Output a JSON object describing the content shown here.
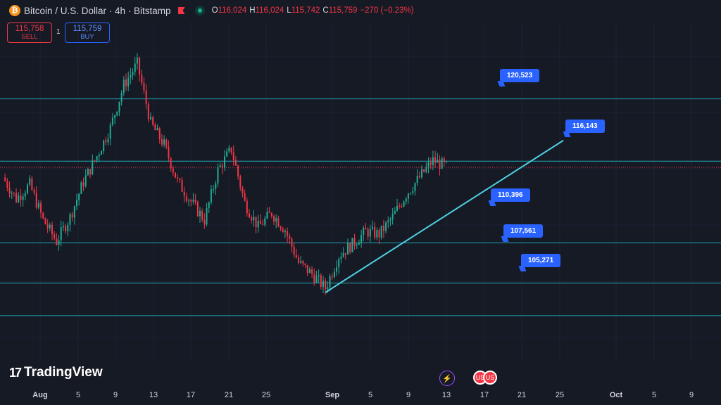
{
  "header": {
    "coin_symbol": "₿",
    "title": "Bitcoin / U.S. Dollar · 4h · Bitstamp",
    "ohlc": {
      "o_label": "O",
      "o": "116,024",
      "h_label": "H",
      "h": "116,024",
      "l_label": "L",
      "l": "115,742",
      "c_label": "C",
      "c": "115,759",
      "change": "−270 (−0.23%)"
    }
  },
  "trade": {
    "sell_price": "115,758",
    "sell_label": "SELL",
    "buy_price": "115,759",
    "buy_label": "BUY",
    "spread": "1"
  },
  "branding": {
    "logo_mark": "17",
    "logo_text": "TradingView"
  },
  "x_axis": {
    "labels": [
      {
        "text": "Aug",
        "bold": true
      },
      {
        "text": "5"
      },
      {
        "text": "9"
      },
      {
        "text": "13"
      },
      {
        "text": "17"
      },
      {
        "text": "21"
      },
      {
        "text": "25"
      },
      {
        "text": "Sep",
        "bold": true
      },
      {
        "text": "5"
      },
      {
        "text": "9"
      },
      {
        "text": "13"
      },
      {
        "text": "17"
      },
      {
        "text": "21"
      },
      {
        "text": "25"
      },
      {
        "text": "Oct",
        "bold": true
      },
      {
        "text": "5"
      },
      {
        "text": "9"
      }
    ]
  },
  "events": {
    "lightning_icon": "⚡",
    "flag_icon": "US"
  },
  "colors": {
    "background": "#161a25",
    "up": "#22ab94",
    "down": "#f23645",
    "level_line": "#22a6b3",
    "trend_line": "#4dd0e1",
    "tag": "#2962ff"
  },
  "chart_data": {
    "type": "candlestick",
    "symbol": "BTCUSD",
    "interval": "4h",
    "exchange": "Bitstamp",
    "last_price": 115759,
    "horizontal_levels": [
      120523,
      116143,
      110396,
      107561,
      105271
    ],
    "level_tags": [
      "120,523",
      "116,143",
      "110,396",
      "107,561",
      "105,271"
    ],
    "trend_line": {
      "from": 106900,
      "to": 117600
    },
    "y_range": [
      102000,
      126000
    ],
    "daily_closes": [
      115000,
      113500,
      114500,
      112000,
      110500,
      112200,
      114700,
      116500,
      118500,
      121500,
      123000,
      118800,
      117300,
      114700,
      113300,
      112000,
      115500,
      117000,
      113200,
      111500,
      112500,
      111300,
      109000,
      108200,
      107200,
      109500,
      110300,
      111200,
      111000,
      112200,
      113800,
      115000,
      116200,
      115759
    ],
    "grid": true,
    "legend": "none"
  }
}
